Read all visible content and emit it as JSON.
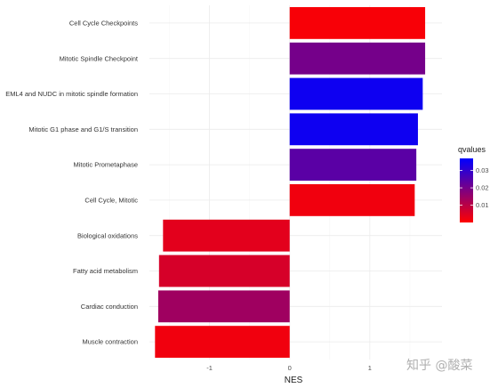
{
  "chart_data": {
    "type": "bar",
    "orientation": "horizontal",
    "categories": [
      "Cell Cycle Checkpoints",
      "Mitotic Spindle Checkpoint",
      "EML4 and NUDC in mitotic spindle formation",
      "Mitotic G1 phase and G1/S transition",
      "Mitotic Prometaphase",
      "Cell Cycle, Mitotic",
      "Biological oxidations",
      "Fatty acid metabolism",
      "Cardiac conduction",
      "Muscle contraction"
    ],
    "values": [
      1.69,
      1.69,
      1.66,
      1.6,
      1.58,
      1.56,
      -1.58,
      -1.63,
      -1.64,
      -1.68
    ],
    "qvalues": [
      0.001,
      0.02,
      0.035,
      0.035,
      0.024,
      0.002,
      0.004,
      0.006,
      0.014,
      0.002
    ],
    "xlabel": "NES",
    "ylabel": "",
    "xlim": [
      -1.75,
      1.9
    ],
    "xticks": [
      -1,
      0,
      1
    ],
    "grid": true,
    "legend": {
      "title": "qvalues",
      "position": "right",
      "ticks": [
        0.01,
        0.02,
        0.03
      ],
      "range": [
        0,
        0.037
      ],
      "color_low": "#ff0000",
      "color_high": "#0000ff"
    }
  },
  "watermark": "知乎 @酸菜"
}
